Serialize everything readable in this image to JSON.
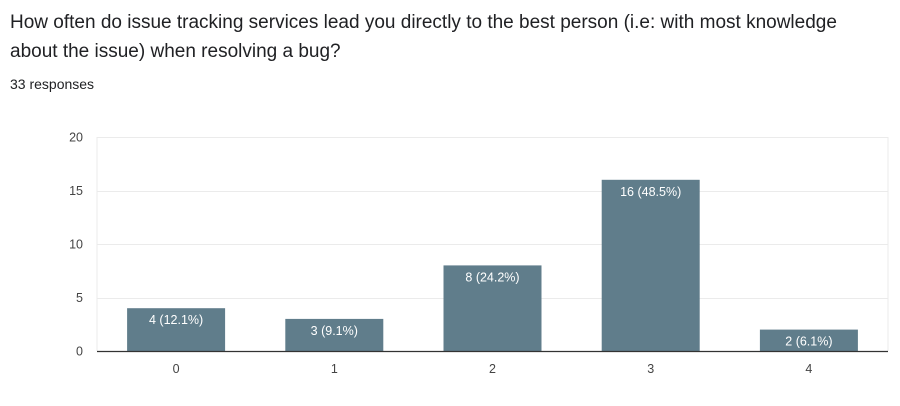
{
  "question": {
    "title": "How often do issue tracking services lead you directly to the best person (i.e: with most knowledge about the issue) when resolving a bug?",
    "response_count": "33 responses"
  },
  "colors": {
    "bar": "#607d8b",
    "grid": "#ebebeb",
    "axis": "#333333"
  },
  "chart_data": {
    "type": "bar",
    "categories": [
      "0",
      "1",
      "2",
      "3",
      "4"
    ],
    "values": [
      4,
      3,
      8,
      16,
      2
    ],
    "data_labels": [
      "4 (12.1%)",
      "3 (9.1%)",
      "8 (24.2%)",
      "16 (48.5%)",
      "2 (6.1%)"
    ],
    "yticks": [
      0,
      5,
      10,
      15,
      20
    ],
    "ylim": [
      0,
      20
    ],
    "grid": true,
    "title": "",
    "xlabel": "",
    "ylabel": ""
  }
}
